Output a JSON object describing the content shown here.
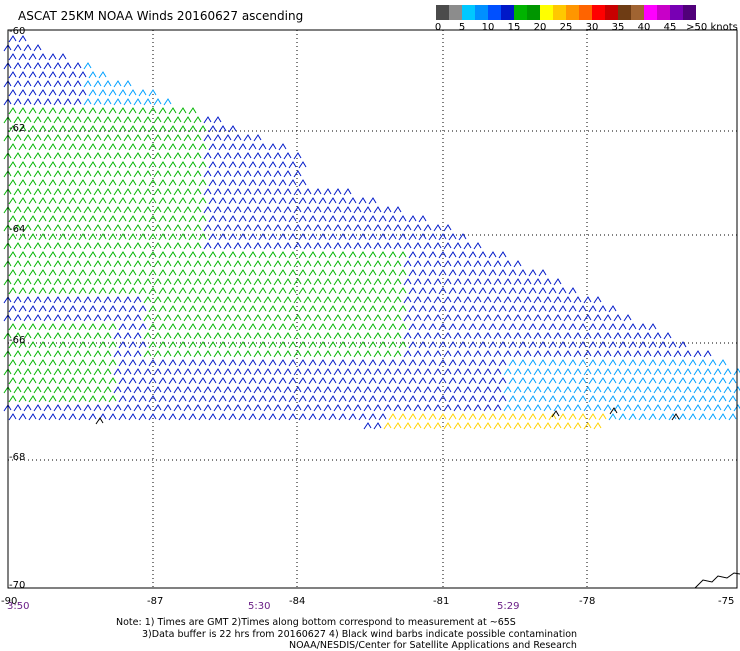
{
  "title": "ASCAT 25KM NOAA Winds 20160627 ascending",
  "colorbar": {
    "colors": [
      "#4b4b4b",
      "#8c8c8c",
      "#00c8ff",
      "#0090ff",
      "#0050ff",
      "#0018c8",
      "#00b400",
      "#009600",
      "#ffff00",
      "#ffc800",
      "#ff9600",
      "#ff6400",
      "#ff0000",
      "#c80000",
      "#6e3c14",
      "#a06432",
      "#ff00ff",
      "#c800c8",
      "#7800b4",
      "#50007a"
    ],
    "labels": [
      "0",
      "5",
      "10",
      "15",
      "20",
      "25",
      "30",
      "35",
      "40",
      "45",
      ">50 knots"
    ]
  },
  "lat_labels": [
    "-60",
    "-62",
    "-64",
    "-66",
    "-68",
    "-70"
  ],
  "lon_labels": [
    "-90",
    "-87",
    "-84",
    "-81",
    "-78",
    "-75"
  ],
  "time_labels": [
    "3:50",
    "5:30",
    "5:29"
  ],
  "notes": [
    "Note: 1) Times are GMT 2)Times along bottom correspond to measurement at ~65S",
    "3)Data buffer is 22 hrs from 20160627 4) Black wind barbs indicate possible contamination",
    "NOAA/NESDIS/Center for Satellite Applications and Research"
  ],
  "wind_colors": {
    "light_blue": "#00a0ff",
    "blue": "#0018c8",
    "green": "#00b400",
    "yellow": "#ffd200"
  }
}
